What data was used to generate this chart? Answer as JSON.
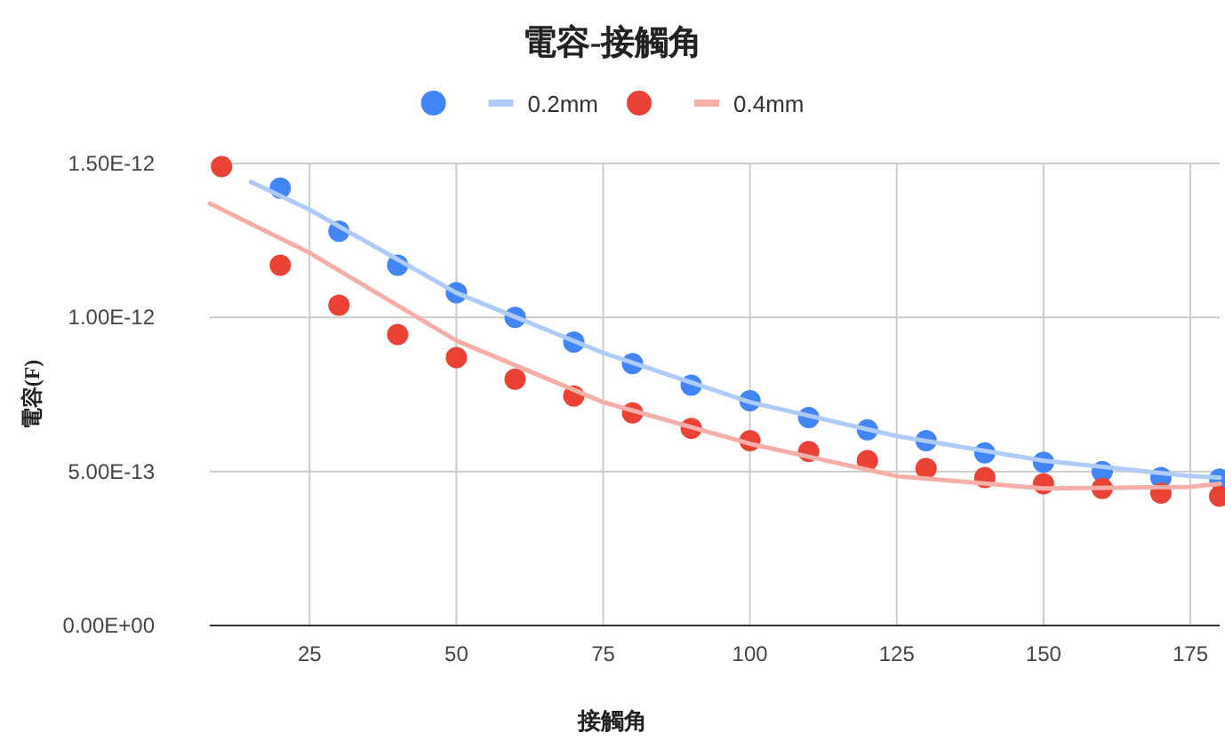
{
  "chart_data": {
    "type": "scatter",
    "title": "電容-接觸角",
    "xlabel": "接觸角",
    "ylabel": "電容(F)",
    "xlim": [
      8,
      180
    ],
    "xticks": [
      25,
      50,
      75,
      100,
      125,
      150,
      175
    ],
    "ylim": [
      0,
      1.5e-12
    ],
    "yticks": [
      {
        "value": 0,
        "label": "0.00E+00"
      },
      {
        "value": 5e-13,
        "label": "5.00E-13"
      },
      {
        "value": 1e-12,
        "label": "1.00E-12"
      },
      {
        "value": 1.5e-12,
        "label": "1.50E-12"
      }
    ],
    "grid": true,
    "legend": "top",
    "marker": "circle",
    "series": [
      {
        "color": "#4285f4",
        "x": [
          20,
          30,
          40,
          50,
          60,
          70,
          80,
          90,
          100,
          110,
          120,
          130,
          140,
          150,
          160,
          170,
          180
        ],
        "values": [
          1.42e-12,
          1.28e-12,
          1.17e-12,
          1.08e-12,
          1e-12,
          9.2e-13,
          8.5e-13,
          7.8e-13,
          7.3e-13,
          6.75e-13,
          6.35e-13,
          6e-13,
          5.6e-13,
          5.3e-13,
          5e-13,
          4.8e-13,
          4.75e-13
        ]
      },
      {
        "type": "line",
        "marker": "none",
        "name": "0.2mm",
        "color": "#aecbfa",
        "x": [
          15,
          25,
          50,
          75,
          100,
          125,
          150,
          175,
          180
        ],
        "values": [
          1.44e-12,
          1.35e-12,
          1.08e-12,
          8.85e-13,
          7.25e-13,
          6.15e-13,
          5.35e-13,
          4.85e-13,
          4.8e-13
        ]
      },
      {
        "color": "#ea4335",
        "x": [
          10,
          20,
          30,
          40,
          50,
          60,
          70,
          80,
          90,
          100,
          110,
          120,
          130,
          140,
          150,
          160,
          170,
          180
        ],
        "values": [
          1.49e-12,
          1.17e-12,
          1.04e-12,
          9.45e-13,
          8.7e-13,
          8e-13,
          7.45e-13,
          6.9e-13,
          6.4e-13,
          6e-13,
          5.65e-13,
          5.35e-13,
          5.1e-13,
          4.8e-13,
          4.6e-13,
          4.45e-13,
          4.3e-13,
          4.2e-13
        ]
      },
      {
        "type": "line",
        "marker": "none",
        "name": "0.4mm",
        "color": "#f6aea9",
        "x": [
          8,
          25,
          50,
          75,
          100,
          125,
          150,
          175,
          180
        ],
        "values": [
          1.37e-12,
          1.21e-12,
          9.25e-13,
          7.25e-13,
          5.9e-13,
          4.85e-13,
          4.45e-13,
          4.5e-13,
          4.6e-13
        ]
      }
    ]
  }
}
